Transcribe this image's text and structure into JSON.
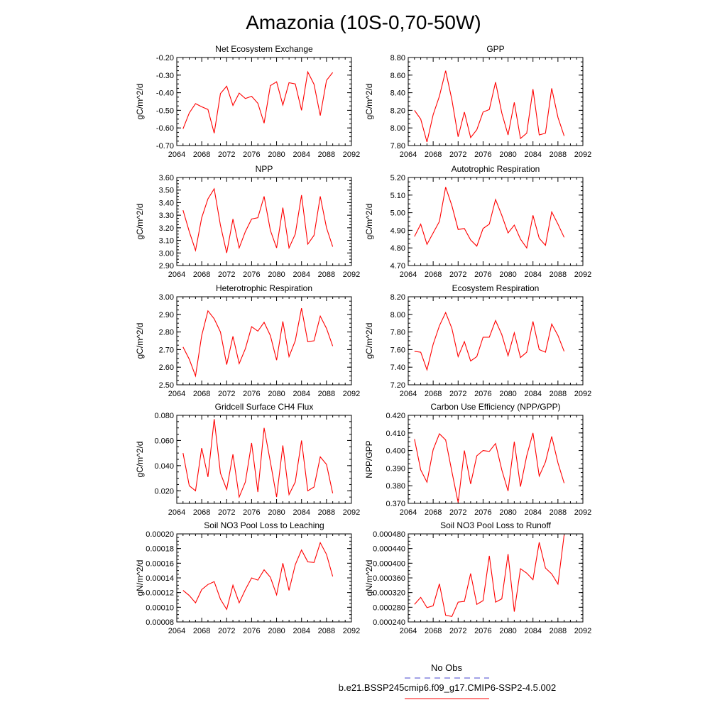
{
  "title": "Amazonia (10S-0,70-50W)",
  "legend": {
    "obs_label": "No Obs",
    "model_label": "b.e21.BSSP245cmip6.f09_g17.CMIP6-SSP2-4.5.002",
    "obs_color": "#4444cc",
    "model_color": "#ff0000"
  },
  "chart_data": [
    {
      "type": "line",
      "title": "Net Ecosystem Exchange",
      "ylabel": "gC/m^2/d",
      "xlim": [
        2064,
        2092
      ],
      "ylim": [
        -0.7,
        -0.2
      ],
      "xticks": [
        "2064",
        "2068",
        "2072",
        "2076",
        "2080",
        "2084",
        "2088",
        "2092"
      ],
      "yticks": [
        "-0.20",
        "-0.30",
        "-0.40",
        "-0.50",
        "-0.60",
        "-0.70"
      ],
      "series": [
        {
          "color": "#ff0000",
          "x": [
            2065,
            2066,
            2067,
            2068,
            2069,
            2070,
            2071,
            2072,
            2073,
            2074,
            2075,
            2076,
            2077,
            2078,
            2079,
            2080,
            2081,
            2082,
            2083,
            2084,
            2085,
            2086,
            2087,
            2088,
            2089
          ],
          "y": [
            -0.605,
            -0.515,
            -0.462,
            -0.48,
            -0.495,
            -0.63,
            -0.405,
            -0.363,
            -0.472,
            -0.402,
            -0.433,
            -0.42,
            -0.46,
            -0.573,
            -0.36,
            -0.338,
            -0.47,
            -0.343,
            -0.35,
            -0.5,
            -0.282,
            -0.352,
            -0.53,
            -0.33,
            -0.285
          ]
        }
      ]
    },
    {
      "type": "line",
      "title": "GPP",
      "ylabel": "gC/m^2/d",
      "xlim": [
        2064,
        2092
      ],
      "ylim": [
        7.8,
        8.8
      ],
      "xticks": [
        "2064",
        "2068",
        "2072",
        "2076",
        "2080",
        "2084",
        "2088",
        "2092"
      ],
      "yticks": [
        "8.80",
        "8.60",
        "8.40",
        "8.20",
        "8.00",
        "7.80"
      ],
      "series": [
        {
          "color": "#ff0000",
          "x": [
            2065,
            2066,
            2067,
            2068,
            2069,
            2070,
            2071,
            2072,
            2073,
            2074,
            2075,
            2076,
            2077,
            2078,
            2079,
            2080,
            2081,
            2082,
            2083,
            2084,
            2085,
            2086,
            2087,
            2088,
            2089
          ],
          "y": [
            8.2,
            8.1,
            7.84,
            8.15,
            8.36,
            8.65,
            8.32,
            7.9,
            8.18,
            7.89,
            7.98,
            8.18,
            8.21,
            8.52,
            8.17,
            7.92,
            8.29,
            7.88,
            7.94,
            8.44,
            7.92,
            7.94,
            8.45,
            8.12,
            7.91
          ]
        }
      ]
    },
    {
      "type": "line",
      "title": "NPP",
      "ylabel": "gC/m^2/d",
      "xlim": [
        2064,
        2092
      ],
      "ylim": [
        2.9,
        3.6
      ],
      "xticks": [
        "2064",
        "2068",
        "2072",
        "2076",
        "2080",
        "2084",
        "2088",
        "2092"
      ],
      "yticks": [
        "3.60",
        "3.50",
        "3.40",
        "3.30",
        "3.20",
        "3.10",
        "3.00",
        "2.90"
      ],
      "series": [
        {
          "color": "#ff0000",
          "x": [
            2065,
            2066,
            2067,
            2068,
            2069,
            2070,
            2071,
            2072,
            2073,
            2074,
            2075,
            2076,
            2077,
            2078,
            2079,
            2080,
            2081,
            2082,
            2083,
            2084,
            2085,
            2086,
            2087,
            2088,
            2089
          ],
          "y": [
            3.34,
            3.17,
            3.02,
            3.28,
            3.43,
            3.51,
            3.22,
            3.0,
            3.27,
            3.04,
            3.17,
            3.27,
            3.28,
            3.45,
            3.18,
            3.04,
            3.36,
            3.04,
            3.15,
            3.46,
            3.07,
            3.14,
            3.45,
            3.2,
            3.05
          ]
        }
      ]
    },
    {
      "type": "line",
      "title": "Autotrophic Respiration",
      "ylabel": "gC/m^2/d",
      "xlim": [
        2064,
        2092
      ],
      "ylim": [
        4.7,
        5.2
      ],
      "xticks": [
        "2064",
        "2068",
        "2072",
        "2076",
        "2080",
        "2084",
        "2088",
        "2092"
      ],
      "yticks": [
        "5.20",
        "5.10",
        "5.00",
        "4.90",
        "4.80",
        "4.70"
      ],
      "series": [
        {
          "color": "#ff0000",
          "x": [
            2065,
            2066,
            2067,
            2068,
            2069,
            2070,
            2071,
            2072,
            2073,
            2074,
            2075,
            2076,
            2077,
            2078,
            2079,
            2080,
            2081,
            2082,
            2083,
            2084,
            2085,
            2086,
            2087,
            2088,
            2089
          ],
          "y": [
            4.865,
            4.935,
            4.82,
            4.885,
            4.95,
            5.145,
            5.04,
            4.905,
            4.91,
            4.845,
            4.81,
            4.91,
            4.935,
            5.075,
            4.985,
            4.885,
            4.93,
            4.85,
            4.8,
            4.985,
            4.855,
            4.815,
            5.005,
            4.935,
            4.86
          ]
        }
      ]
    },
    {
      "type": "line",
      "title": "Heterotrophic Respiration",
      "ylabel": "gC/m^2/d",
      "xlim": [
        2064,
        2092
      ],
      "ylim": [
        2.5,
        3.0
      ],
      "xticks": [
        "2064",
        "2068",
        "2072",
        "2076",
        "2080",
        "2084",
        "2088",
        "2092"
      ],
      "yticks": [
        "3.00",
        "2.90",
        "2.80",
        "2.70",
        "2.60",
        "2.50"
      ],
      "series": [
        {
          "color": "#ff0000",
          "x": [
            2065,
            2066,
            2067,
            2068,
            2069,
            2070,
            2071,
            2072,
            2073,
            2074,
            2075,
            2076,
            2077,
            2078,
            2079,
            2080,
            2081,
            2082,
            2083,
            2084,
            2085,
            2086,
            2087,
            2088,
            2089
          ],
          "y": [
            2.715,
            2.645,
            2.55,
            2.78,
            2.92,
            2.875,
            2.8,
            2.615,
            2.775,
            2.62,
            2.705,
            2.83,
            2.805,
            2.855,
            2.78,
            2.64,
            2.86,
            2.66,
            2.75,
            2.935,
            2.745,
            2.75,
            2.89,
            2.82,
            2.72
          ]
        }
      ]
    },
    {
      "type": "line",
      "title": "Ecosystem Respiration",
      "ylabel": "gC/m^2/d",
      "xlim": [
        2064,
        2092
      ],
      "ylim": [
        7.2,
        8.2
      ],
      "xticks": [
        "2064",
        "2068",
        "2072",
        "2076",
        "2080",
        "2084",
        "2088",
        "2092"
      ],
      "yticks": [
        "8.20",
        "8.00",
        "7.80",
        "7.60",
        "7.40",
        "7.20"
      ],
      "series": [
        {
          "color": "#ff0000",
          "x": [
            2065,
            2066,
            2067,
            2068,
            2069,
            2070,
            2071,
            2072,
            2073,
            2074,
            2075,
            2076,
            2077,
            2078,
            2079,
            2080,
            2081,
            2082,
            2083,
            2084,
            2085,
            2086,
            2087,
            2088,
            2089
          ],
          "y": [
            7.58,
            7.57,
            7.37,
            7.66,
            7.87,
            8.02,
            7.84,
            7.52,
            7.69,
            7.47,
            7.52,
            7.74,
            7.74,
            7.93,
            7.77,
            7.53,
            7.79,
            7.51,
            7.57,
            7.92,
            7.6,
            7.57,
            7.89,
            7.76,
            7.58
          ]
        }
      ]
    },
    {
      "type": "line",
      "title": "Gridcell Surface CH4 Flux",
      "ylabel": "gC/m^2/d",
      "xlim": [
        2064,
        2092
      ],
      "ylim": [
        0.01,
        0.08
      ],
      "xticks": [
        "2064",
        "2068",
        "2072",
        "2076",
        "2080",
        "2084",
        "2088",
        "2092"
      ],
      "yticks": [
        "0.080",
        "0.060",
        "0.040",
        "0.020"
      ],
      "series": [
        {
          "color": "#ff0000",
          "x": [
            2065,
            2066,
            2067,
            2068,
            2069,
            2070,
            2071,
            2072,
            2073,
            2074,
            2075,
            2076,
            2077,
            2078,
            2079,
            2080,
            2081,
            2082,
            2083,
            2084,
            2085,
            2086,
            2087,
            2088,
            2089
          ],
          "y": [
            0.05,
            0.024,
            0.02,
            0.054,
            0.031,
            0.077,
            0.034,
            0.021,
            0.049,
            0.015,
            0.027,
            0.058,
            0.019,
            0.07,
            0.043,
            0.015,
            0.056,
            0.017,
            0.027,
            0.06,
            0.02,
            0.023,
            0.047,
            0.041,
            0.018
          ]
        }
      ]
    },
    {
      "type": "line",
      "title": "Carbon Use Efficiency (NPP/GPP)",
      "ylabel": "NPP/GPP",
      "xlim": [
        2064,
        2092
      ],
      "ylim": [
        0.37,
        0.42
      ],
      "xticks": [
        "2064",
        "2068",
        "2072",
        "2076",
        "2080",
        "2084",
        "2088",
        "2092"
      ],
      "yticks": [
        "0.420",
        "0.410",
        "0.400",
        "0.390",
        "0.380",
        "0.370"
      ],
      "series": [
        {
          "color": "#ff0000",
          "x": [
            2065,
            2066,
            2067,
            2068,
            2069,
            2070,
            2071,
            2072,
            2073,
            2074,
            2075,
            2076,
            2077,
            2078,
            2079,
            2080,
            2081,
            2082,
            2083,
            2084,
            2085,
            2086,
            2087,
            2088,
            2089
          ],
          "y": [
            0.4065,
            0.389,
            0.382,
            0.4005,
            0.4095,
            0.406,
            0.388,
            0.3705,
            0.4,
            0.381,
            0.397,
            0.4,
            0.3995,
            0.404,
            0.389,
            0.377,
            0.405,
            0.3795,
            0.397,
            0.41,
            0.3855,
            0.3935,
            0.408,
            0.393,
            0.3815
          ]
        }
      ]
    },
    {
      "type": "line",
      "title": "Soil NO3 Pool Loss to Leaching",
      "ylabel": "gN/m^2/d",
      "xlim": [
        2064,
        2092
      ],
      "ylim": [
        8e-05,
        0.0002
      ],
      "xticks": [
        "2064",
        "2068",
        "2072",
        "2076",
        "2080",
        "2084",
        "2088",
        "2092"
      ],
      "yticks": [
        "0.00020",
        "0.00018",
        "0.00016",
        "0.00014",
        "0.00012",
        "0.00010",
        "0.00008"
      ],
      "series": [
        {
          "color": "#ff0000",
          "x": [
            2065,
            2066,
            2067,
            2068,
            2069,
            2070,
            2071,
            2072,
            2073,
            2074,
            2075,
            2076,
            2077,
            2078,
            2079,
            2080,
            2081,
            2082,
            2083,
            2084,
            2085,
            2086,
            2087,
            2088,
            2089
          ],
          "y": [
            0.000123,
            0.000116,
            0.000106,
            0.000124,
            0.000131,
            0.000135,
            0.000111,
            9.7e-05,
            0.00013,
            0.000106,
            0.000124,
            0.00014,
            0.000137,
            0.000151,
            0.000141,
            0.000117,
            0.00016,
            0.000123,
            0.000158,
            0.000178,
            0.000162,
            0.000161,
            0.000188,
            0.000172,
            0.000142
          ]
        }
      ]
    },
    {
      "type": "line",
      "title": "Soil NO3 Pool Loss to Runoff",
      "ylabel": "gN/m^2/d",
      "xlim": [
        2064,
        2092
      ],
      "ylim": [
        0.00024,
        0.00048
      ],
      "xticks": [
        "2064",
        "2068",
        "2072",
        "2076",
        "2080",
        "2084",
        "2088",
        "2092"
      ],
      "yticks": [
        "0.000480",
        "0.000440",
        "0.000400",
        "0.000360",
        "0.000320",
        "0.000280",
        "0.000240"
      ],
      "series": [
        {
          "color": "#ff0000",
          "x": [
            2065,
            2066,
            2067,
            2068,
            2069,
            2070,
            2071,
            2072,
            2073,
            2074,
            2075,
            2076,
            2077,
            2078,
            2079,
            2080,
            2081,
            2082,
            2083,
            2084,
            2085,
            2086,
            2087,
            2088,
            2089
          ],
          "y": [
            0.000288,
            0.000307,
            0.000279,
            0.000284,
            0.000344,
            0.000258,
            0.000255,
            0.000294,
            0.000296,
            0.000372,
            0.000288,
            0.000298,
            0.00042,
            0.000294,
            0.000303,
            0.000425,
            0.000268,
            0.000385,
            0.000373,
            0.000355,
            0.000457,
            0.000387,
            0.000371,
            0.000343,
            0.000477
          ]
        }
      ]
    }
  ]
}
